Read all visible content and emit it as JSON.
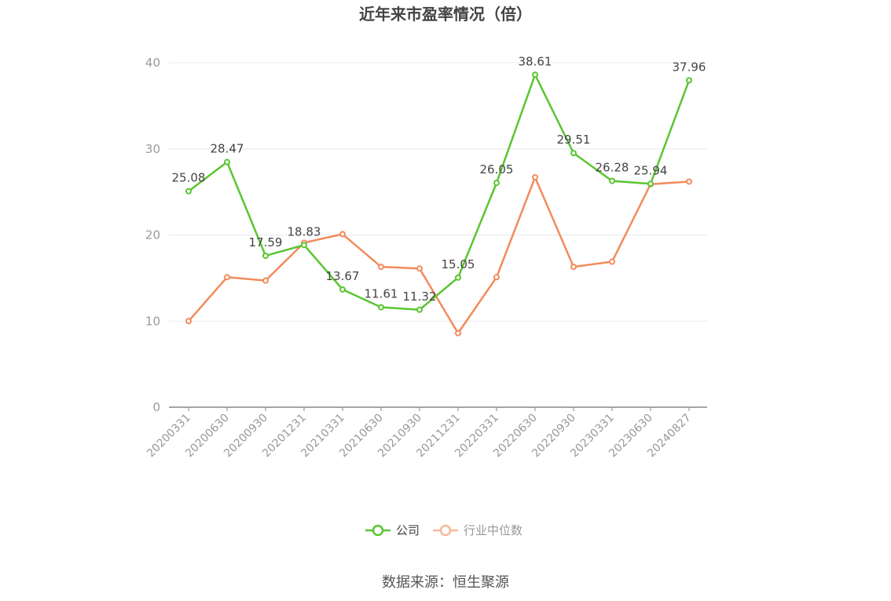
{
  "chart_data": {
    "type": "line",
    "title": "近年来市盈率情况（倍）",
    "categories": [
      "20200331",
      "20200630",
      "20200930",
      "20201231",
      "20210331",
      "20210630",
      "20210930",
      "20211231",
      "20220331",
      "20220630",
      "20220930",
      "20230331",
      "20230630",
      "20240827"
    ],
    "series": [
      {
        "name": "公司",
        "color": "#5ac530",
        "values": [
          25.08,
          28.47,
          17.59,
          18.83,
          13.67,
          11.61,
          11.32,
          15.05,
          26.05,
          38.61,
          29.51,
          26.28,
          25.94,
          37.96
        ],
        "show_labels": true
      },
      {
        "name": "行业中位数",
        "color": "#f28b5b",
        "values": [
          10.0,
          15.1,
          14.7,
          19.1,
          20.1,
          16.3,
          16.1,
          8.6,
          15.1,
          26.7,
          16.3,
          16.9,
          25.9,
          26.2
        ],
        "show_labels": false
      }
    ],
    "ylim": [
      0,
      40
    ],
    "yticks": [
      0,
      10,
      20,
      30,
      40
    ],
    "grid": true,
    "legend_position": "bottom"
  },
  "source_text": "数据来源：恒生聚源"
}
